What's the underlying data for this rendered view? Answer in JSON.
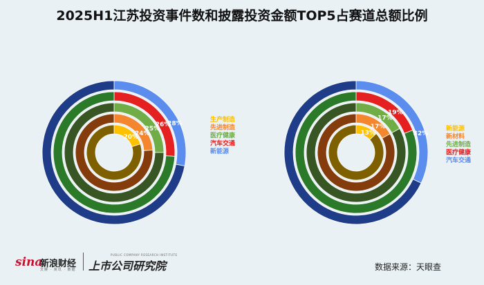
{
  "title": "2025H1江苏投资事件数和披露投资金额TOP5占赛道总额比例",
  "footer": {
    "brand_sina": "sina",
    "brand_sina_name": "新浪财经",
    "brand_sina_sub": "文娱 · 资讯 · 数据",
    "brand_institute": "上市公司研究院",
    "brand_institute_sub": "PUBLIC COMPANY RESEARCH INSTITUTE",
    "source": "数据来源：天眼查"
  },
  "chart_data": [
    {
      "type": "pie",
      "subtype": "concentric-rings",
      "title": "",
      "series": [
        {
          "name": "生产制造",
          "value": 20,
          "label": "20%",
          "color": "#ffc000"
        },
        {
          "name": "先进制造",
          "value": 24,
          "label": "24%",
          "color": "#f4862e"
        },
        {
          "name": "医疗健康",
          "value": 25,
          "label": "25%",
          "color": "#70ad47"
        },
        {
          "name": "汽车交通",
          "value": 26,
          "label": "26%",
          "color": "#e42020"
        },
        {
          "name": "新能源",
          "value": 28,
          "label": "28%",
          "color": "#5b8def"
        }
      ],
      "legend_position": "right"
    },
    {
      "type": "pie",
      "subtype": "concentric-rings",
      "title": "",
      "series": [
        {
          "name": "新能源",
          "value": 13,
          "label": "13%",
          "color": "#ffc000"
        },
        {
          "name": "新材料",
          "value": 17,
          "label": "17%",
          "color": "#f4862e"
        },
        {
          "name": "先进制造",
          "value": 17,
          "label": "17%",
          "color": "#70ad47"
        },
        {
          "name": "医疗健康",
          "value": 19,
          "label": "19%",
          "color": "#e42020"
        },
        {
          "name": "汽车交通",
          "value": 32,
          "label": "32%",
          "color": "#5b8def"
        }
      ],
      "legend_position": "right"
    }
  ],
  "ring_rest_colors": [
    "#7f6000",
    "#843c0c",
    "#375623",
    "#2a7a2a",
    "#1f3c88"
  ]
}
